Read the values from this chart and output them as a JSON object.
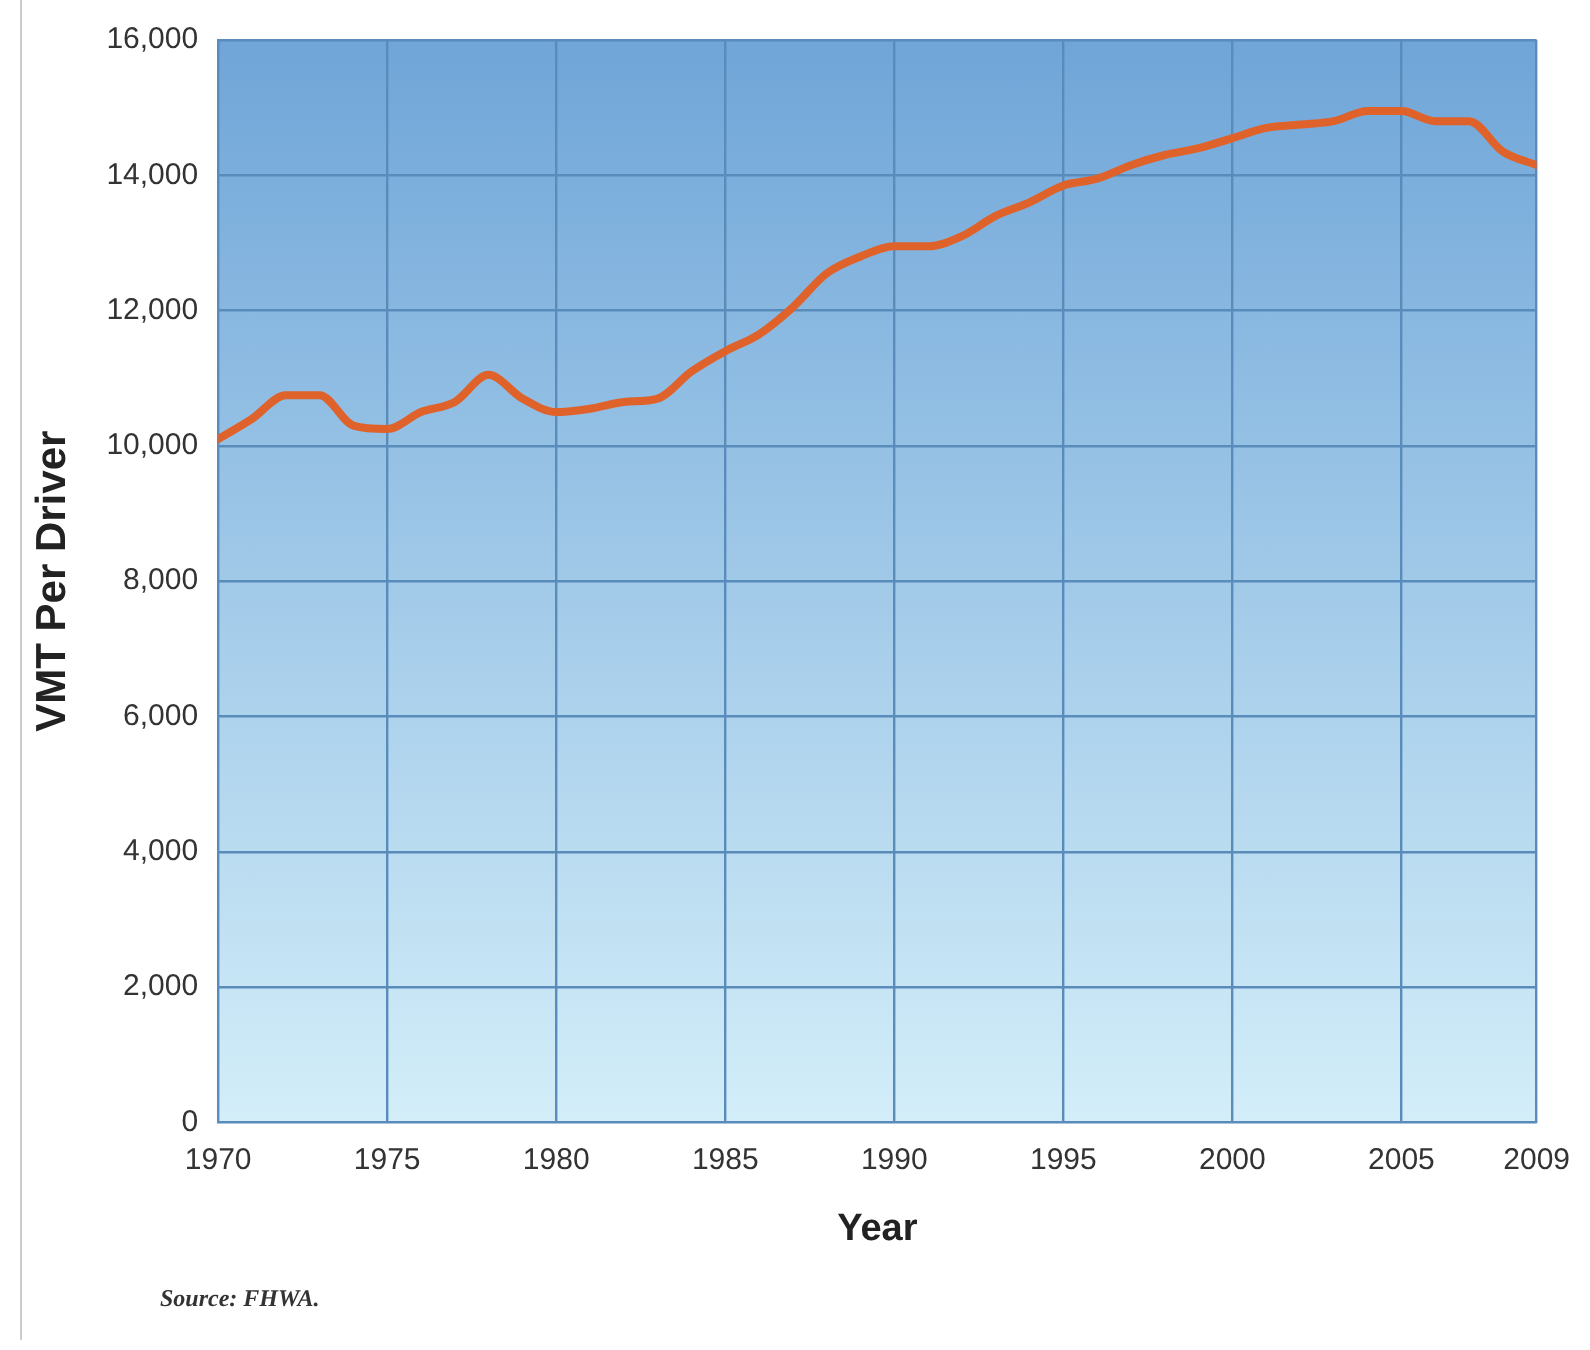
{
  "chart_data": {
    "type": "line",
    "xlabel": "Year",
    "ylabel": "VMT Per Driver",
    "annotations": [
      "Source: FHWA."
    ],
    "x": [
      1970,
      1971,
      1972,
      1973,
      1974,
      1975,
      1976,
      1977,
      1978,
      1979,
      1980,
      1981,
      1982,
      1983,
      1984,
      1985,
      1986,
      1987,
      1988,
      1989,
      1990,
      1991,
      1992,
      1993,
      1994,
      1995,
      1996,
      1997,
      1998,
      1999,
      2000,
      2001,
      2002,
      2003,
      2004,
      2005,
      2006,
      2007,
      2008,
      2009
    ],
    "series": [
      {
        "color": "#e0622b",
        "values": [
          10100,
          10400,
          10750,
          10750,
          10300,
          10250,
          10500,
          10650,
          11050,
          10700,
          10500,
          10550,
          10650,
          10700,
          11100,
          11400,
          11650,
          12050,
          12550,
          12800,
          12950,
          12950,
          13100,
          13400,
          13600,
          13850,
          13950,
          14150,
          14300,
          14400,
          14550,
          14700,
          14750,
          14800,
          14950,
          14950,
          14800,
          14800,
          14350,
          14150
        ]
      }
    ],
    "xlim": [
      1970,
      2009
    ],
    "xticks": [
      1970,
      1975,
      1980,
      1985,
      1990,
      1995,
      2000,
      2005,
      2009
    ],
    "ylim": [
      0,
      16000
    ],
    "yticks": [
      {
        "value": 0,
        "label": "0"
      },
      {
        "value": 2000,
        "label": "2,000"
      },
      {
        "value": 4000,
        "label": "4,000"
      },
      {
        "value": 6000,
        "label": "6,000"
      },
      {
        "value": 8000,
        "label": "8,000"
      },
      {
        "value": 10000,
        "label": "10,000"
      },
      {
        "value": 12000,
        "label": "12,000"
      },
      {
        "value": 14000,
        "label": "14,000"
      },
      {
        "value": 16000,
        "label": "16,000"
      }
    ],
    "grid": true,
    "legend": false,
    "marker": "none",
    "line_style": "solid"
  }
}
